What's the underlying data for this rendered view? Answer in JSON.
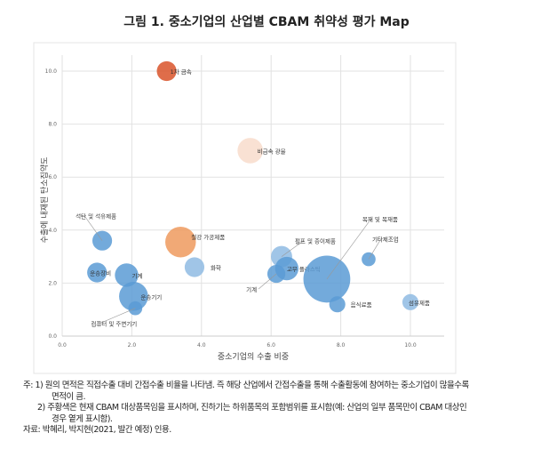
{
  "title": "그림 1. 중소기업의 산업별 CBAM 취약성 평가 Map",
  "chart_data": {
    "type": "bubble",
    "xlabel": "중소기업의 수출 비중",
    "ylabel": "수출에 내재된 탄소집약도",
    "xlim": [
      0,
      11
    ],
    "ylim": [
      0,
      11
    ],
    "xticks": [
      "0.0",
      "2.0",
      "4.0",
      "6.0",
      "8.0",
      "10.0"
    ],
    "yticks": [
      "0.0",
      "2.0",
      "4.0",
      "6.0",
      "8.0",
      "10.0"
    ],
    "grid": true,
    "colors": {
      "blue": "#5b9bd5",
      "light_blue": "#8fbbe3",
      "orange": "#ef9a5e",
      "dark_orange": "#d9542a",
      "peach": "#f8dccb"
    },
    "points": [
      {
        "label": "1차 금속",
        "x": 3.0,
        "y": 10.0,
        "size": 12,
        "color": "dark_orange"
      },
      {
        "label": "비금속 광물",
        "x": 5.4,
        "y": 7.0,
        "size": 20,
        "color": "peach"
      },
      {
        "label": "석탄 및 석유제품",
        "x": 1.15,
        "y": 3.6,
        "size": 12,
        "color": "blue"
      },
      {
        "label": "철강 가공제품",
        "x": 3.4,
        "y": 3.55,
        "size": 29,
        "color": "orange"
      },
      {
        "label": "화학",
        "x": 3.8,
        "y": 2.6,
        "size": 12,
        "color": "light_blue"
      },
      {
        "label": "운송장비",
        "x": 1.0,
        "y": 2.4,
        "size": 12,
        "color": "blue"
      },
      {
        "label": "기계",
        "x": 1.85,
        "y": 2.3,
        "size": 17,
        "color": "blue"
      },
      {
        "label": "운송기기",
        "x": 2.05,
        "y": 1.5,
        "size": 26,
        "color": "blue"
      },
      {
        "label": "컴퓨터 및 주변기기",
        "x": 2.1,
        "y": 1.05,
        "size": 6,
        "color": "blue"
      },
      {
        "label": "펄프 및 종이제품",
        "x": 6.3,
        "y": 3.0,
        "size": 14,
        "color": "light_blue"
      },
      {
        "label": "고무 플라스틱",
        "x": 6.45,
        "y": 2.55,
        "size": 17,
        "color": "blue"
      },
      {
        "label": "기계",
        "x": 6.15,
        "y": 2.35,
        "size": 10,
        "color": "blue"
      },
      {
        "label": "목재 및 목재품",
        "x": 7.6,
        "y": 2.15,
        "size": 68,
        "color": "blue"
      },
      {
        "label": "기타제조업",
        "x": 8.8,
        "y": 2.9,
        "size": 6,
        "color": "blue"
      },
      {
        "label": "음식료품",
        "x": 7.9,
        "y": 1.2,
        "size": 8,
        "color": "blue"
      },
      {
        "label": "섬유제품",
        "x": 10.0,
        "y": 1.28,
        "size": 8,
        "color": "light_blue"
      }
    ]
  },
  "notes": {
    "n1a": "주: 1) 원의 면적은 직접수출 대비 간접수출 비율을 나타냄. 즉 해당 산업에서 간접수출을 통해 수출활동에 참여하는 중소기업이 많을수록",
    "n1b": "면적이 큼.",
    "n2a": "2) 주황색은 현재 CBAM 대상품목임을 표시하며, 진하기는 하위품목의 포함범위를 표시함(예: 산업의 일부 품목만이 CBAM 대상인",
    "n2b": "경우 옅게 표시함).",
    "source": "자료: 박혜리, 박지현(2021, 발간 예정) 인용."
  }
}
